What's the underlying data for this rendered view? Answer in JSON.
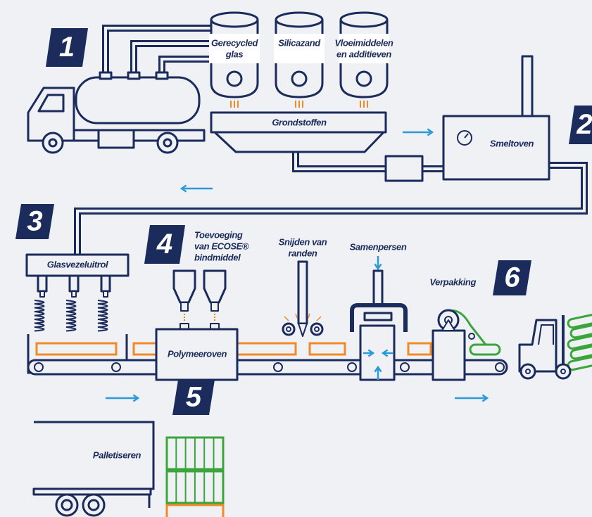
{
  "steps": [
    "1",
    "2",
    "3",
    "4",
    "5",
    "6"
  ],
  "labels": {
    "recycled_glass": [
      "Gerecycled",
      "glas"
    ],
    "silica_sand": [
      "Silicazand"
    ],
    "fluxes_additives": [
      "Vloeimiddelen",
      "en additieven"
    ],
    "raw_materials": [
      "Grondstoffen"
    ],
    "melting_furnace": [
      "Smeltoven"
    ],
    "fiberizing": [
      "Glasvezeluitrol"
    ],
    "binder": [
      "Toevoeging",
      "van ECOSE®",
      "bindmiddel"
    ],
    "edge_trimming": [
      "Snijden van",
      "randen"
    ],
    "compression": [
      "Samenpersen"
    ],
    "curing_oven": [
      "Polymeeroven"
    ],
    "packaging": [
      "Verpakking"
    ],
    "palletizing": [
      "Palletiseren"
    ]
  }
}
